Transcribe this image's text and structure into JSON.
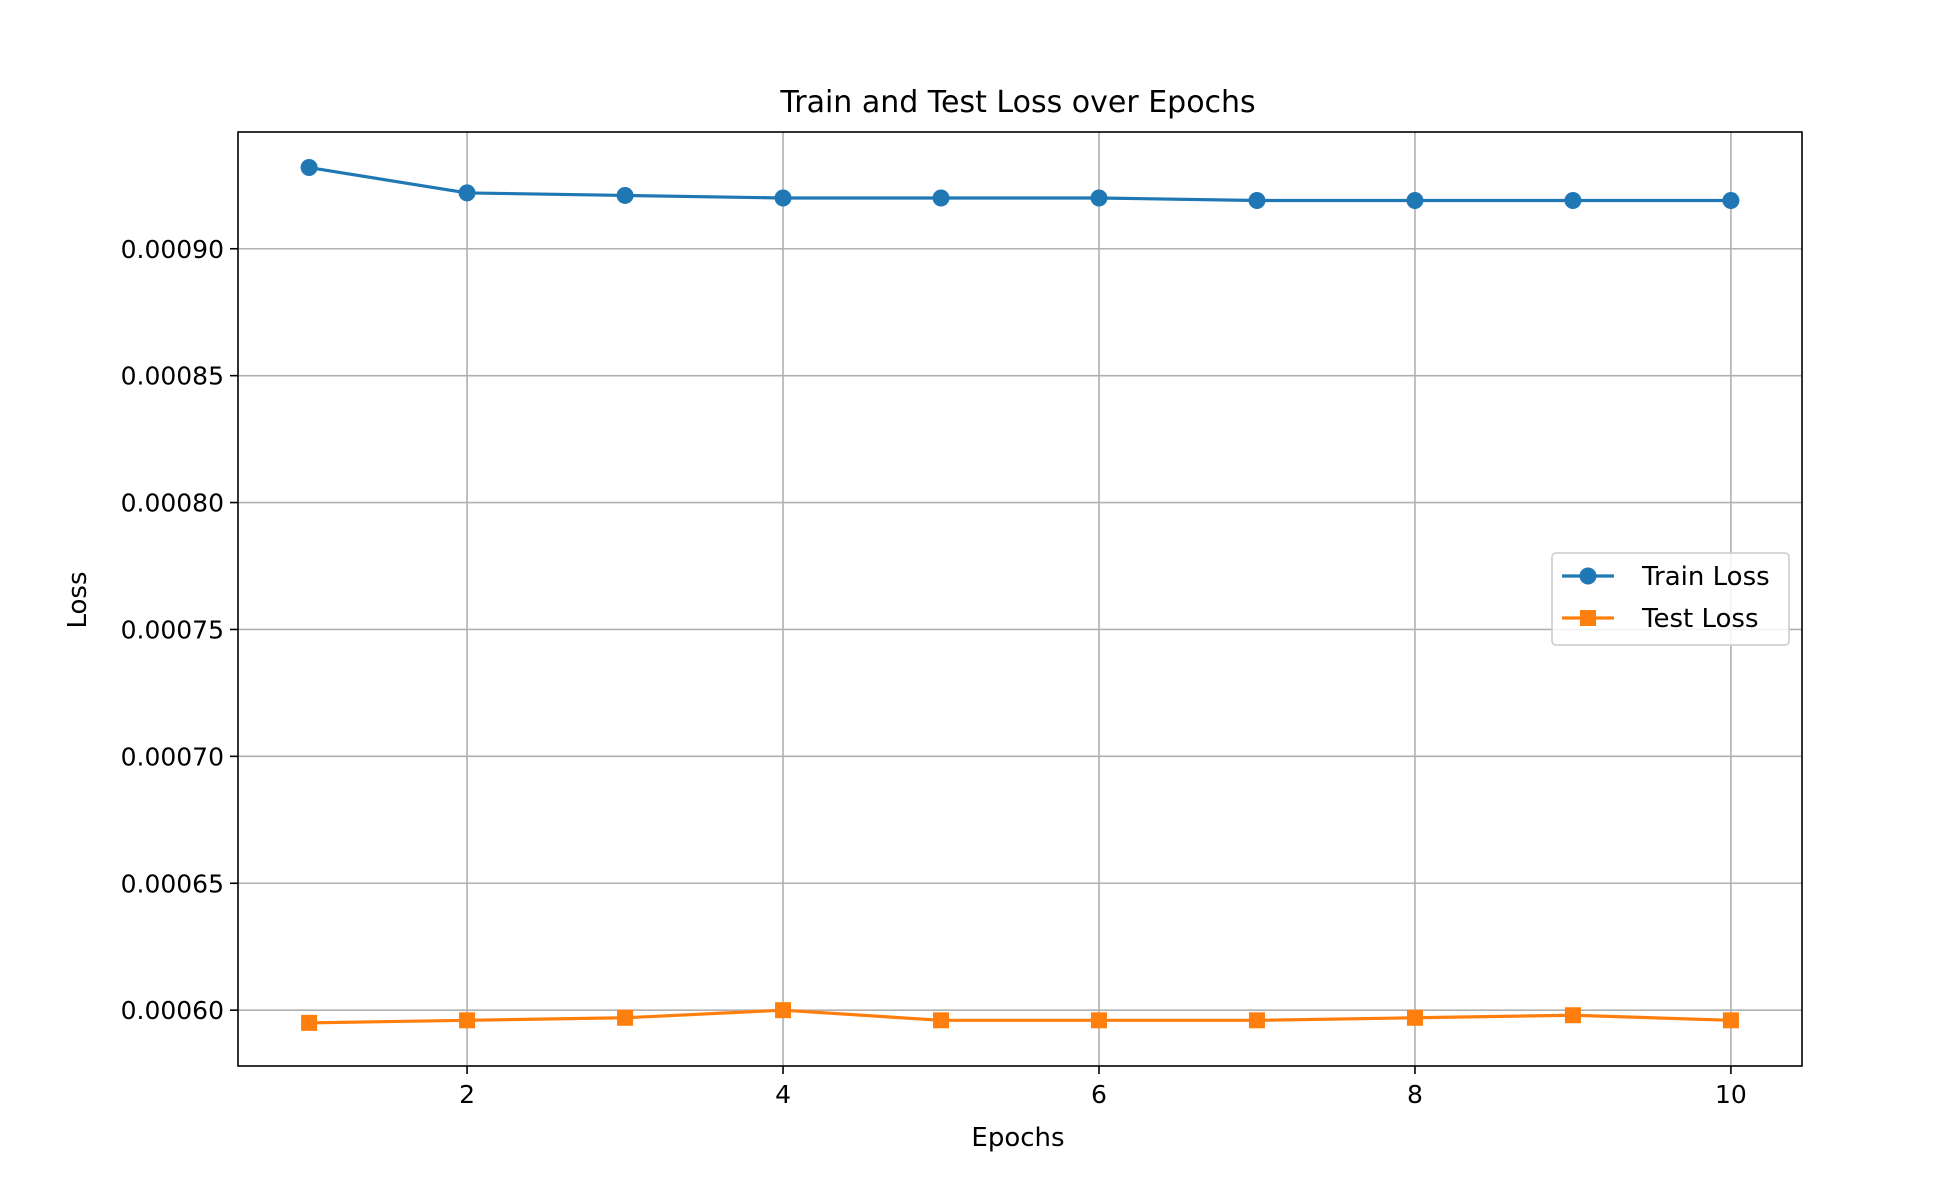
{
  "chart_data": {
    "type": "line",
    "title": "Train and Test Loss over Epochs",
    "xlabel": "Epochs",
    "ylabel": "Loss",
    "x": [
      1,
      2,
      3,
      4,
      5,
      6,
      7,
      8,
      9,
      10
    ],
    "xlim": [
      0.55,
      10.45
    ],
    "ylim": [
      0.000578,
      0.000946
    ],
    "xticks": [
      2,
      4,
      6,
      8,
      10
    ],
    "xtick_labels": [
      "2",
      "4",
      "6",
      "8",
      "10"
    ],
    "yticks": [
      0.0006,
      0.00065,
      0.0007,
      0.00075,
      0.0008,
      0.00085,
      0.0009
    ],
    "ytick_labels": [
      "0.00060",
      "0.00065",
      "0.00070",
      "0.00075",
      "0.00080",
      "0.00085",
      "0.00090"
    ],
    "grid": true,
    "legend_position": "center-right",
    "series": [
      {
        "name": "Train Loss",
        "marker": "circle",
        "color": "#1f77b4",
        "values": [
          0.000932,
          0.000922,
          0.000921,
          0.00092,
          0.00092,
          0.00092,
          0.000919,
          0.000919,
          0.000919,
          0.000919
        ]
      },
      {
        "name": "Test Loss",
        "marker": "square",
        "color": "#ff7f0e",
        "values": [
          0.000595,
          0.000596,
          0.000597,
          0.0006,
          0.000596,
          0.000596,
          0.000596,
          0.000597,
          0.000598,
          0.000596
        ]
      }
    ]
  }
}
